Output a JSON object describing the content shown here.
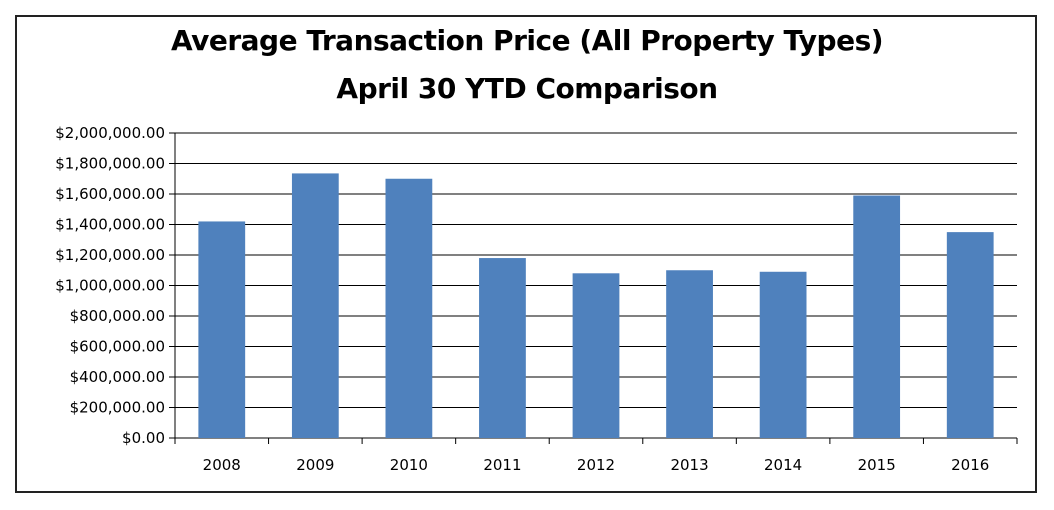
{
  "chart_data": {
    "type": "bar",
    "title": "Average Transaction Price (All Property Types)",
    "subtitle": "April 30 YTD Comparison",
    "categories": [
      "2008",
      "2009",
      "2010",
      "2011",
      "2012",
      "2013",
      "2014",
      "2015",
      "2016"
    ],
    "values": [
      1420000,
      1735000,
      1700000,
      1180000,
      1080000,
      1100000,
      1090000,
      1590000,
      1350000
    ],
    "ylim": [
      0,
      2000000
    ],
    "yticks": [
      0,
      200000,
      400000,
      600000,
      800000,
      1000000,
      1200000,
      1400000,
      1600000,
      1800000,
      2000000
    ],
    "ytick_labels": [
      "$0.00",
      "$200,000.00",
      "$400,000.00",
      "$600,000.00",
      "$800,000.00",
      "$1,000,000.00",
      "$1,200,000.00",
      "$1,400,000.00",
      "$1,600,000.00",
      "$1,800,000.00",
      "$2,000,000.00"
    ],
    "bar_color": "#4f81bd",
    "grid": true,
    "legend": false
  }
}
